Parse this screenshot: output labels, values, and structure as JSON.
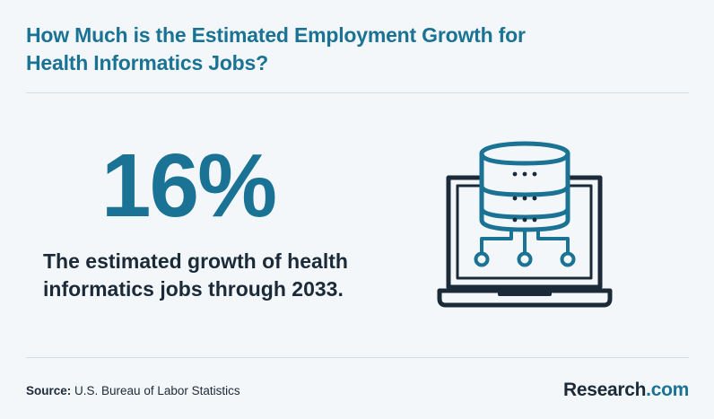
{
  "title": {
    "line1": "How Much is the Estimated Employment Growth for",
    "line2": "Health Informatics Jobs?"
  },
  "stat": {
    "value": "16%",
    "description_line1": "The estimated growth of health",
    "description_line2": "informatics jobs through 2033."
  },
  "illustration": {
    "icon": "laptop-database-icon"
  },
  "footer": {
    "source_label": "Source:",
    "source_text": "U.S. Bureau of Labor Statistics",
    "brand_name": "Research",
    "brand_suffix": ".com"
  },
  "colors": {
    "accent": "#1a7394",
    "text_dark": "#1b2a38",
    "background": "#f4f7f9"
  }
}
